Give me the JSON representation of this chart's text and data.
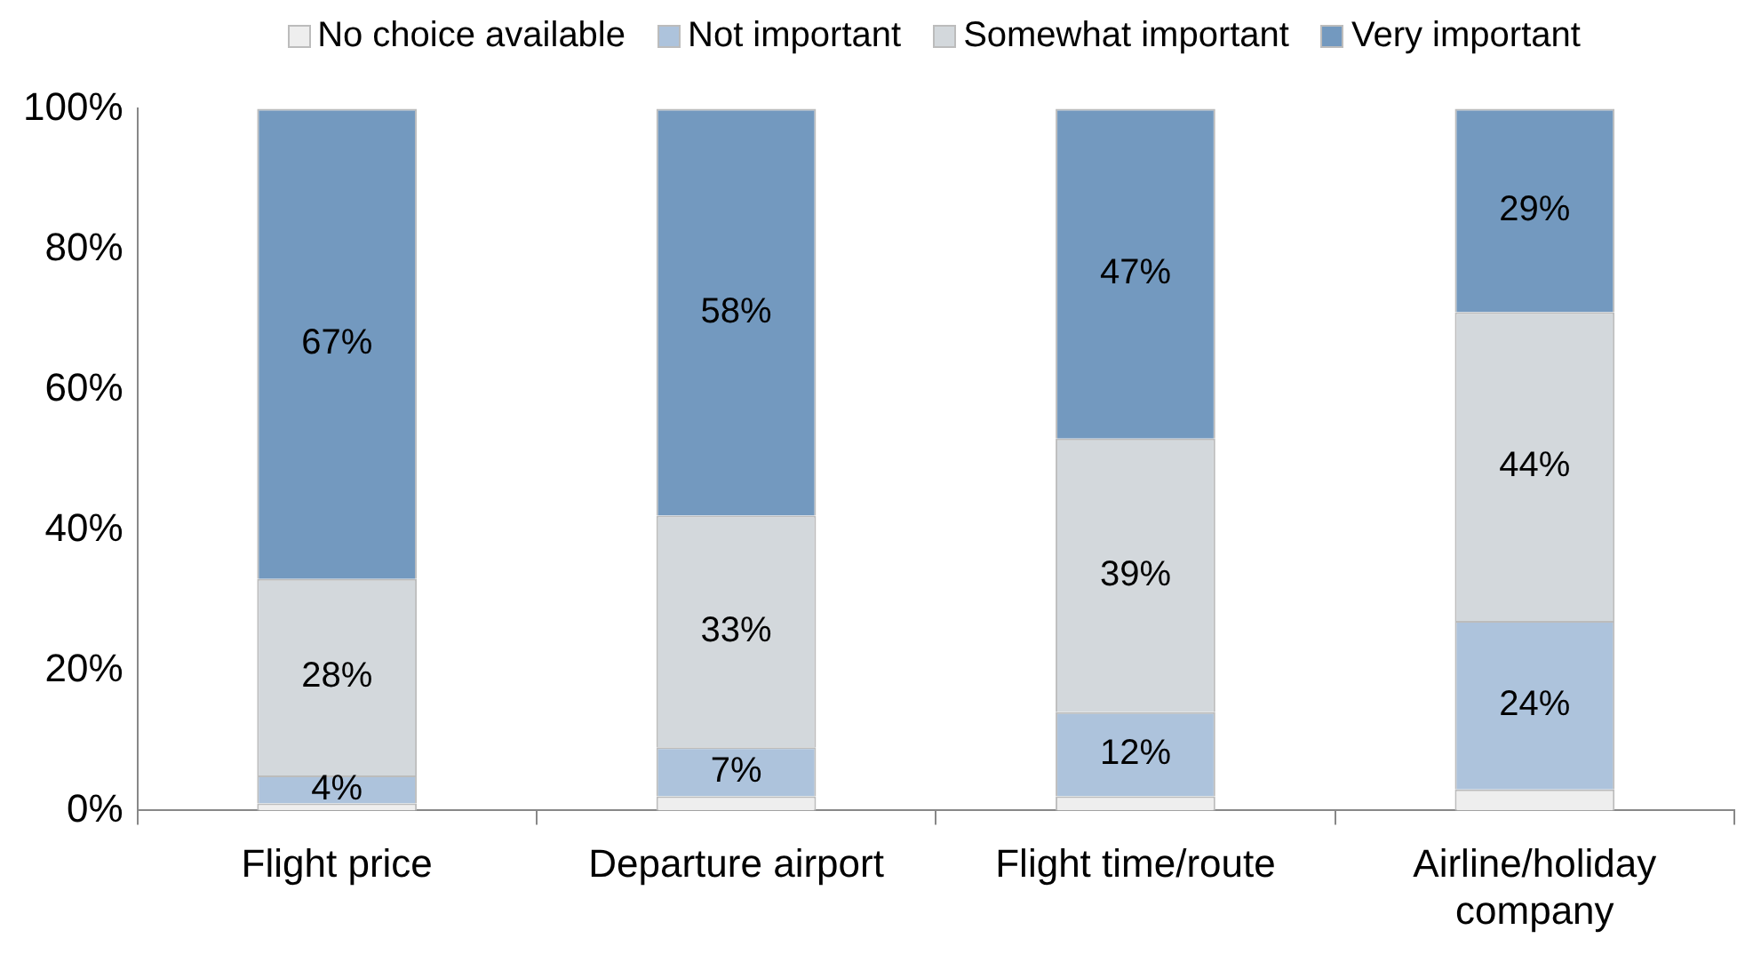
{
  "chart_data": {
    "type": "bar",
    "stacked": true,
    "legend": "top",
    "categories": [
      "Flight price",
      "Departure airport",
      "Flight time/route",
      "Airline/holiday company"
    ],
    "series": [
      {
        "name": "No choice available",
        "color": "#eeeeee",
        "values": [
          1,
          2,
          2,
          3
        ],
        "value_labels": [
          null,
          null,
          null,
          null
        ]
      },
      {
        "name": "Not important",
        "color": "#adc3dc",
        "values": [
          4,
          7,
          12,
          24
        ],
        "value_labels": [
          "4%",
          "7%",
          "12%",
          "24%"
        ]
      },
      {
        "name": "Somewhat important",
        "color": "#d3d8dc",
        "values": [
          28,
          33,
          39,
          44
        ],
        "value_labels": [
          "28%",
          "33%",
          "39%",
          "44%"
        ]
      },
      {
        "name": "Very important",
        "color": "#7399bf",
        "values": [
          67,
          58,
          47,
          29
        ],
        "value_labels": [
          "67%",
          "58%",
          "47%",
          "29%"
        ]
      }
    ],
    "ylim": [
      0,
      100
    ],
    "yticks": [
      {
        "value": 0,
        "label": "0%"
      },
      {
        "value": 20,
        "label": "20%"
      },
      {
        "value": 40,
        "label": "40%"
      },
      {
        "value": 60,
        "label": "60%"
      },
      {
        "value": 80,
        "label": "80%"
      },
      {
        "value": 100,
        "label": "100%"
      }
    ],
    "grid": false
  }
}
